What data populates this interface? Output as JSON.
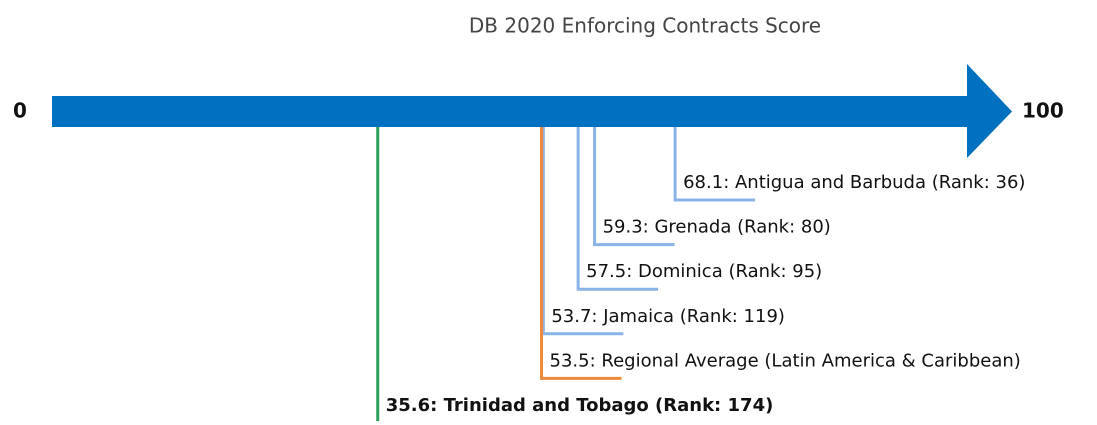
{
  "chart_data": {
    "type": "number-line",
    "title": "DB 2020 Enforcing Contracts Score",
    "xlim": [
      0,
      100
    ],
    "xticks": [
      0,
      100
    ],
    "axis_color": "#0070c0",
    "values": [
      68.1,
      59.3,
      57.5,
      53.7,
      53.5,
      35.6
    ],
    "value_labels": [
      "68.1: Antigua and Barbuda (Rank: 36)",
      "59.3: Grenada (Rank: 80)",
      "57.5: Dominica (Rank: 95)",
      "53.7: Jamaica (Rank: 119)",
      "53.5: Regional Average (Latin America & Caribbean)",
      "35.6: Trinidad and Tobago (Rank: 174)"
    ],
    "colors": [
      "#8ab4e8",
      "#8ab4e8",
      "#8ab4e8",
      "#8ab4e8",
      "#ee8a3a",
      "#2ca05a"
    ],
    "highlight": [
      false,
      false,
      false,
      false,
      false,
      true
    ]
  }
}
